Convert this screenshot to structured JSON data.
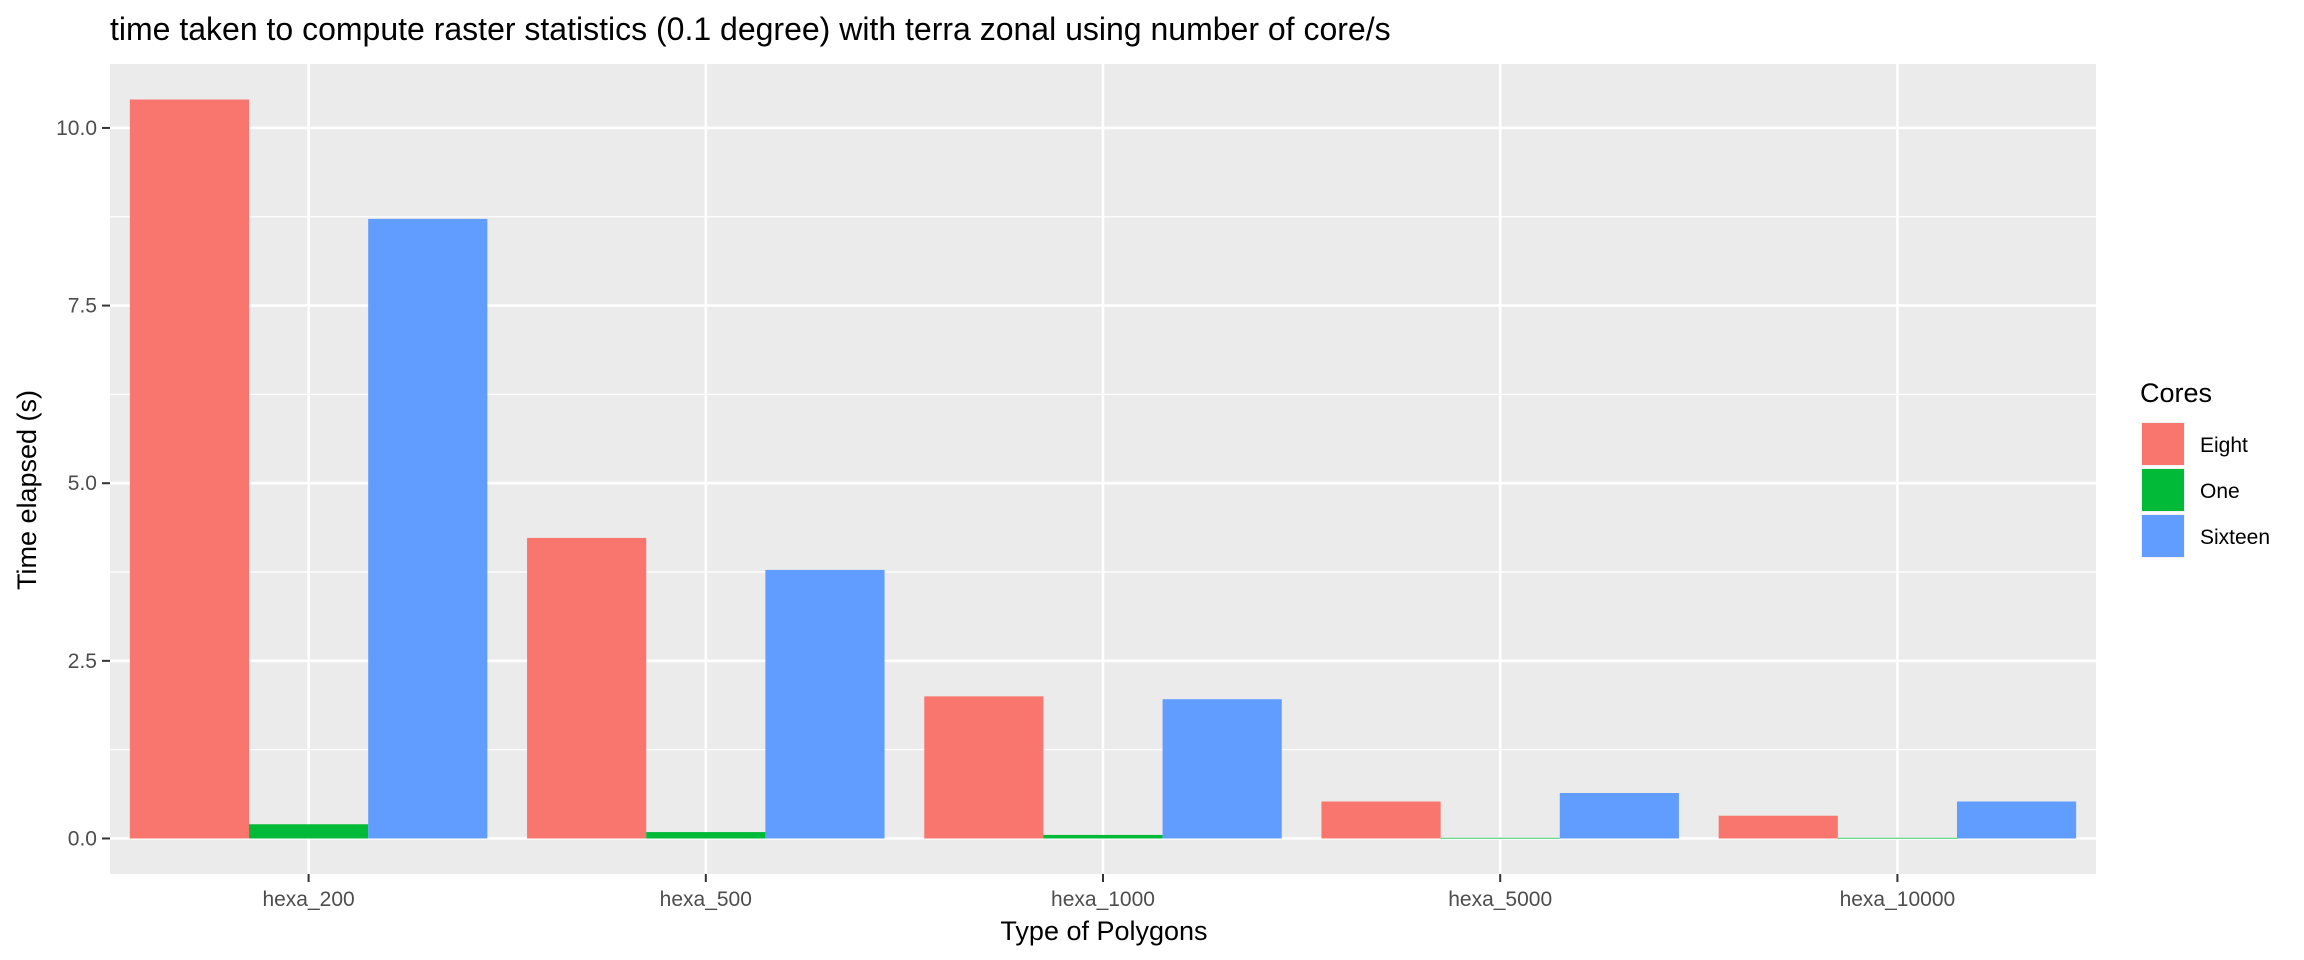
{
  "chart_data": {
    "type": "bar",
    "title": "time taken to compute raster statistics (0.1 degree) with terra zonal using number of core/s",
    "xlabel": "Type of Polygons",
    "ylabel": "Time elapsed (s)",
    "categories": [
      "hexa_200",
      "hexa_500",
      "hexa_1000",
      "hexa_5000",
      "hexa_10000"
    ],
    "series": [
      {
        "name": "Eight",
        "color": "#F8766D",
        "values": [
          10.4,
          4.23,
          2.0,
          0.52,
          0.32
        ]
      },
      {
        "name": "One",
        "color": "#00BA38",
        "values": [
          0.2,
          0.09,
          0.05,
          0.01,
          0.01
        ]
      },
      {
        "name": "Sixteen",
        "color": "#619CFF",
        "values": [
          8.72,
          3.78,
          1.96,
          0.64,
          0.52
        ]
      }
    ],
    "yticks": [
      0.0,
      2.5,
      5.0,
      7.5,
      10.0
    ],
    "ytick_labels": [
      "0.0",
      "2.5",
      "5.0",
      "7.5",
      "10.0"
    ],
    "ylim": [
      -0.5,
      10.9
    ],
    "grid": true,
    "legend": {
      "title": "Cores",
      "placement": "right"
    },
    "panel_background": "#EBEBEB",
    "grid_color": "#FFFFFF"
  }
}
